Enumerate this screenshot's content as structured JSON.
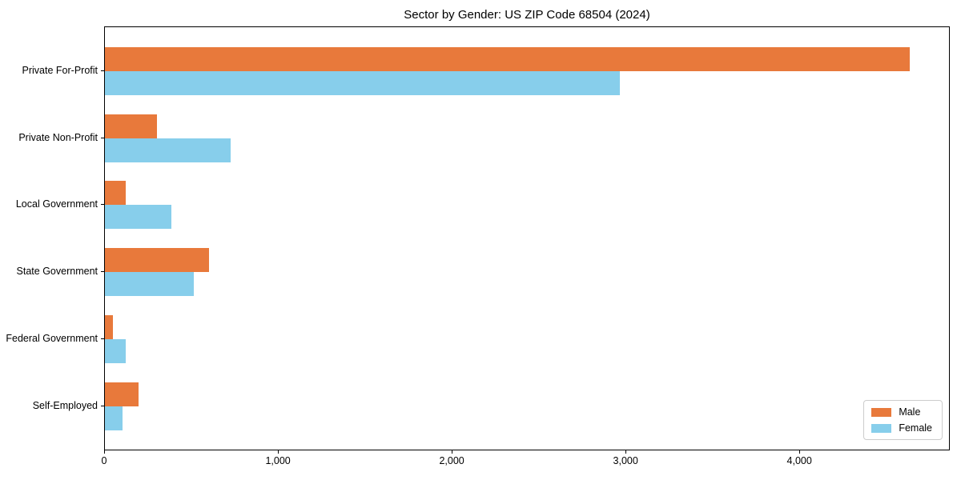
{
  "title": "Sector by Gender: US ZIP Code 68504 (2024)",
  "colors": {
    "male": "#e8793b",
    "female": "#87ceeb",
    "axis": "#000000",
    "legend_border": "#cccccc",
    "background": "#ffffff"
  },
  "chart_data": {
    "type": "bar",
    "orientation": "horizontal",
    "title": "Sector by Gender: US ZIP Code 68504 (2024)",
    "categories": [
      "Private For-Profit",
      "Private Non-Profit",
      "Local Government",
      "State Government",
      "Federal Government",
      "Self-Employed"
    ],
    "series": [
      {
        "name": "Male",
        "color": "#e8793b",
        "values": [
          4630,
          300,
          120,
          600,
          45,
          195
        ]
      },
      {
        "name": "Female",
        "color": "#87ceeb",
        "values": [
          2960,
          725,
          380,
          510,
          120,
          100
        ]
      }
    ],
    "xlabel": "",
    "ylabel": "",
    "xlim": [
      0,
      4865
    ],
    "xticks": [
      0,
      1000,
      2000,
      3000,
      4000
    ],
    "xtick_labels": [
      "0",
      "1,000",
      "2,000",
      "3,000",
      "4,000"
    ],
    "grid": false,
    "legend": {
      "position": "lower right",
      "entries": [
        "Male",
        "Female"
      ]
    }
  }
}
